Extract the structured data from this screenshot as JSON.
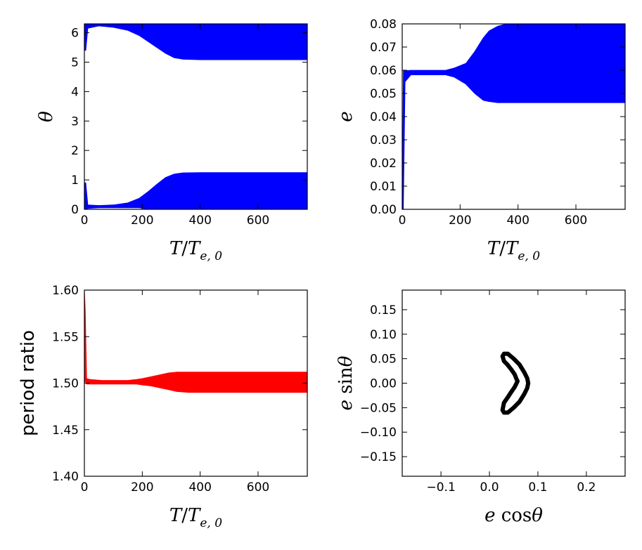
{
  "chart_data": [
    {
      "id": "theta",
      "type": "area",
      "panel": "top-left",
      "xlabel_parts": [
        "T",
        "/",
        "T",
        "e, 0"
      ],
      "ylabel": "θ",
      "xlim": [
        0,
        770
      ],
      "ylim": [
        0,
        6.3
      ],
      "xticks": [
        0,
        200,
        400,
        600
      ],
      "yticks": [
        0,
        1,
        2,
        3,
        4,
        5,
        6
      ],
      "color": "#0000ff",
      "series": [
        {
          "name": "lower band",
          "x": [
            0,
            5,
            12,
            50,
            100,
            150,
            190,
            220,
            250,
            280,
            310,
            340,
            400,
            500,
            600,
            770
          ],
          "low": [
            0,
            0,
            0.03,
            0.05,
            0.05,
            0.05,
            0.05,
            0,
            0,
            0,
            0,
            0,
            0,
            0,
            0,
            0
          ],
          "high": [
            0.9,
            0.9,
            0.15,
            0.13,
            0.15,
            0.22,
            0.38,
            0.6,
            0.85,
            1.08,
            1.2,
            1.24,
            1.25,
            1.25,
            1.25,
            1.25
          ]
        },
        {
          "name": "upper band",
          "x": [
            0,
            5,
            12,
            50,
            100,
            150,
            190,
            220,
            250,
            280,
            310,
            340,
            400,
            500,
            600,
            770
          ],
          "low": [
            5.4,
            5.4,
            6.15,
            6.23,
            6.18,
            6.08,
            5.9,
            5.7,
            5.5,
            5.3,
            5.15,
            5.1,
            5.08,
            5.08,
            5.08,
            5.08
          ],
          "high": [
            6.3,
            6.3,
            6.3,
            6.3,
            6.3,
            6.3,
            6.3,
            6.3,
            6.3,
            6.3,
            6.3,
            6.3,
            6.3,
            6.3,
            6.3,
            6.3
          ]
        }
      ]
    },
    {
      "id": "eccentricity",
      "type": "area",
      "panel": "top-right",
      "xlabel_parts": [
        "T",
        "/",
        "T",
        "e, 0"
      ],
      "ylabel": "e",
      "xlim": [
        0,
        770
      ],
      "ylim": [
        0,
        0.08
      ],
      "xticks": [
        0,
        200,
        400,
        600
      ],
      "yticks": [
        0.0,
        0.01,
        0.02,
        0.03,
        0.04,
        0.05,
        0.06,
        0.07,
        0.08
      ],
      "ytick_labels": [
        "0.00",
        "0.01",
        "0.02",
        "0.03",
        "0.04",
        "0.05",
        "0.06",
        "0.07",
        "0.08"
      ],
      "color": "#0000ff",
      "series": [
        {
          "name": "e envelope",
          "x": [
            0,
            4,
            10,
            30,
            100,
            150,
            180,
            220,
            250,
            280,
            300,
            330,
            360,
            400,
            500,
            600,
            770
          ],
          "low": [
            0,
            0,
            0.055,
            0.058,
            0.058,
            0.058,
            0.057,
            0.054,
            0.05,
            0.047,
            0.0465,
            0.046,
            0.046,
            0.046,
            0.046,
            0.046,
            0.046
          ],
          "high": [
            0.002,
            0.06,
            0.0598,
            0.06,
            0.06,
            0.06,
            0.061,
            0.063,
            0.068,
            0.074,
            0.077,
            0.079,
            0.08,
            0.08,
            0.08,
            0.08,
            0.08
          ]
        }
      ]
    },
    {
      "id": "period_ratio",
      "type": "area",
      "panel": "bottom-left",
      "xlabel_parts": [
        "T",
        "/",
        "T",
        "e, 0"
      ],
      "ylabel": "period ratio",
      "xlim": [
        0,
        770
      ],
      "ylim": [
        1.4,
        1.6
      ],
      "xticks": [
        0,
        200,
        400,
        600
      ],
      "yticks": [
        1.4,
        1.45,
        1.5,
        1.55,
        1.6
      ],
      "ytick_labels": [
        "1.40",
        "1.45",
        "1.50",
        "1.55",
        "1.60"
      ],
      "color": "#ff0000",
      "series": [
        {
          "name": "ratio envelope",
          "x": [
            0,
            3,
            8,
            20,
            60,
            100,
            150,
            180,
            200,
            230,
            260,
            290,
            320,
            360,
            400,
            500,
            600,
            770
          ],
          "low": [
            1.5,
            1.502,
            1.499,
            1.499,
            1.499,
            1.499,
            1.499,
            1.499,
            1.498,
            1.497,
            1.495,
            1.493,
            1.491,
            1.49,
            1.49,
            1.49,
            1.49,
            1.49
          ],
          "high": [
            1.6,
            1.58,
            1.505,
            1.504,
            1.503,
            1.503,
            1.503,
            1.504,
            1.505,
            1.507,
            1.509,
            1.511,
            1.512,
            1.512,
            1.512,
            1.512,
            1.512,
            1.512
          ]
        }
      ]
    },
    {
      "id": "phase_space",
      "type": "scatter",
      "panel": "bottom-right",
      "xlabel_parts": [
        "e",
        "cos",
        "θ"
      ],
      "ylabel_parts": [
        "e",
        "sin",
        "θ"
      ],
      "xlim": [
        -0.18,
        0.28
      ],
      "ylim": [
        -0.19,
        0.19
      ],
      "xticks": [
        -0.1,
        0.0,
        0.1,
        0.2
      ],
      "xtick_labels": [
        "−0.1",
        "0.0",
        "0.1",
        "0.2"
      ],
      "yticks": [
        -0.15,
        -0.1,
        -0.05,
        0.0,
        0.05,
        0.1,
        0.15
      ],
      "ytick_labels": [
        "−0.15",
        "−0.10",
        "−0.05",
        "0.00",
        "0.05",
        "0.10",
        "0.15"
      ],
      "color": "#000000",
      "series": [
        {
          "name": "trajectory (crescent)",
          "x": [
            0.03,
            0.038,
            0.05,
            0.062,
            0.072,
            0.078,
            0.08,
            0.078,
            0.072,
            0.062,
            0.05,
            0.038,
            0.03,
            0.027,
            0.03,
            0.037,
            0.045,
            0.052,
            0.056,
            0.058,
            0.056,
            0.052,
            0.045,
            0.037,
            0.03,
            0.027,
            0.03
          ],
          "y": [
            0.06,
            0.06,
            0.05,
            0.038,
            0.022,
            0.01,
            0.0,
            -0.01,
            -0.022,
            -0.038,
            -0.05,
            -0.06,
            -0.06,
            -0.055,
            -0.04,
            -0.03,
            -0.018,
            -0.008,
            0.0,
            0.004,
            0.008,
            0.018,
            0.028,
            0.038,
            0.045,
            0.055,
            0.06
          ]
        }
      ]
    }
  ]
}
